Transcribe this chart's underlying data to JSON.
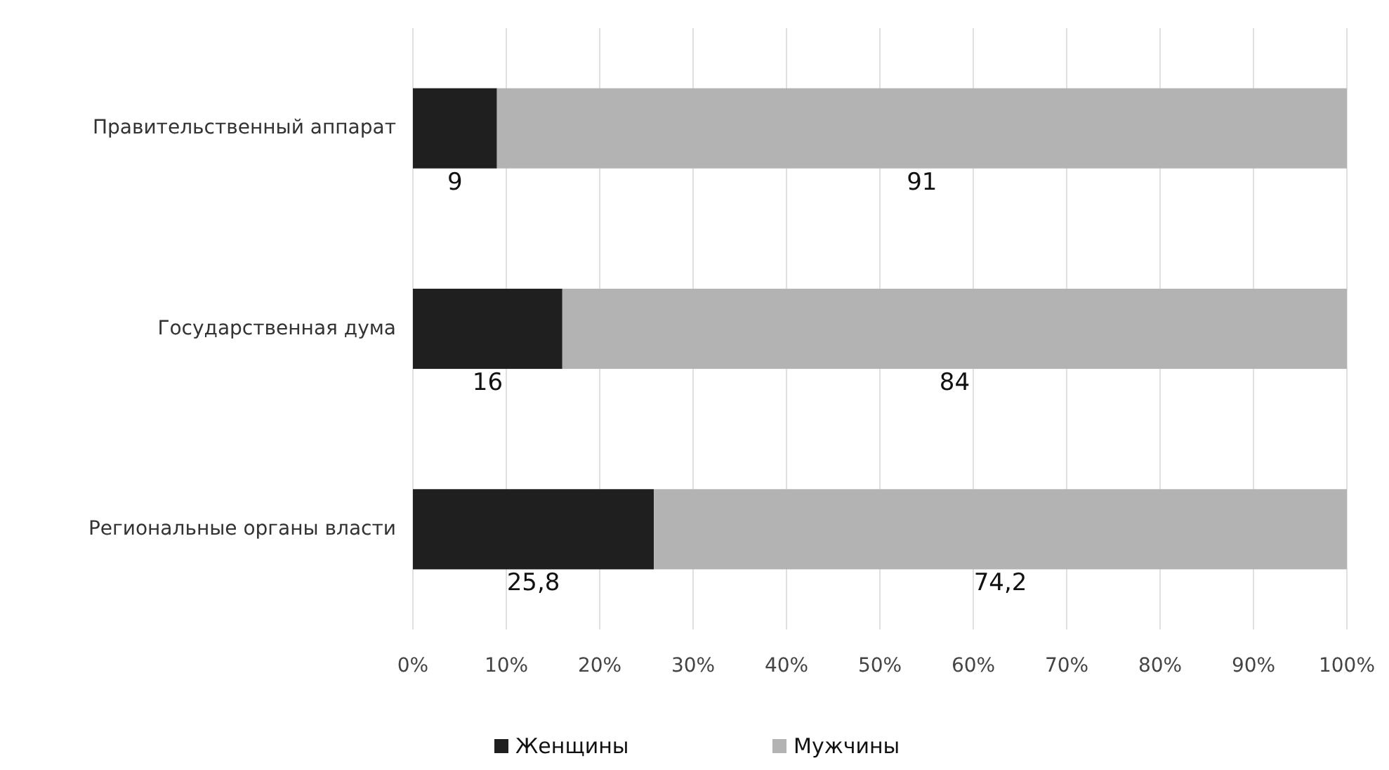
{
  "chart_data": {
    "type": "bar",
    "orientation": "horizontal",
    "stacked": true,
    "categories": [
      "Правительственный аппарат",
      "Государственная дума",
      "Региональные органы власти"
    ],
    "series": [
      {
        "name": "Женщины",
        "color": "#1f1f1f",
        "values": [
          9,
          16,
          25.8
        ],
        "value_labels": [
          "9",
          "16",
          "25,8"
        ]
      },
      {
        "name": "Мужчины",
        "color": "#b3b3b3",
        "values": [
          91,
          84,
          74.2
        ],
        "value_labels": [
          "91",
          "84",
          "74,2"
        ]
      }
    ],
    "xlim": [
      0,
      100
    ],
    "xticks": [
      {
        "value": 0,
        "label": "0%"
      },
      {
        "value": 10,
        "label": "10%"
      },
      {
        "value": 20,
        "label": "20%"
      },
      {
        "value": 30,
        "label": "30%"
      },
      {
        "value": 40,
        "label": "40%"
      },
      {
        "value": 50,
        "label": "50%"
      },
      {
        "value": 60,
        "label": "60%"
      },
      {
        "value": 70,
        "label": "70%"
      },
      {
        "value": 80,
        "label": "80%"
      },
      {
        "value": 90,
        "label": "90%"
      },
      {
        "value": 100,
        "label": "100%"
      }
    ],
    "grid": "x",
    "legend": "bottom"
  }
}
